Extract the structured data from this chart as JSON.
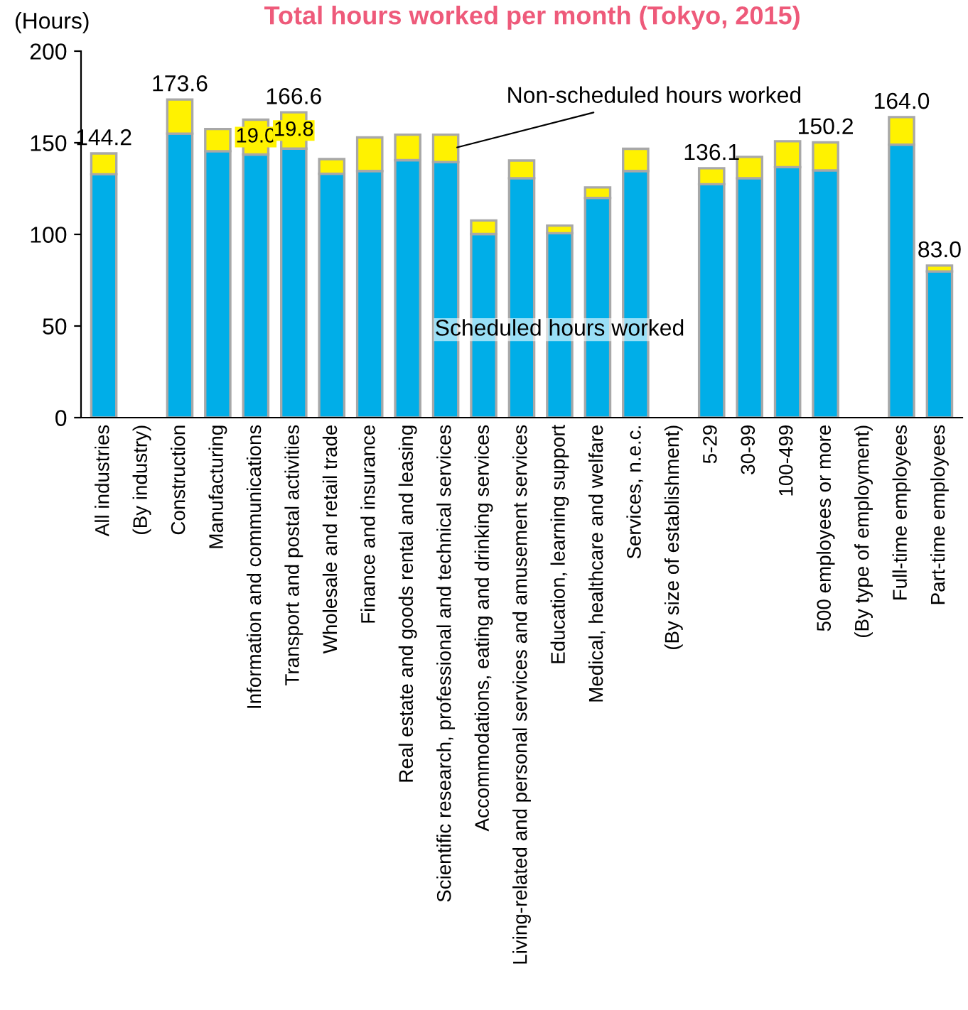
{
  "chart_data": {
    "type": "bar",
    "stacked": true,
    "title": "Total hours worked per month (Tokyo, 2015)",
    "ylabel": "(Hours)",
    "categories": [
      "All industries",
      "(By industry)",
      "Construction",
      "Manufacturing",
      "Information and communications",
      "Transport and postal activities",
      "Wholesale and retail trade",
      "Finance and insurance",
      "Real estate and goods rental and leasing",
      "Scientific research, professional and technical services",
      "Accommodations, eating and drinking services",
      "Living-related and personal services and amusement services",
      "Education, learning support",
      "Medical, healthcare and welfare",
      "Services, n.e.c.",
      "(By size of establishment)",
      "5-29",
      "30-99",
      "100-499",
      "500 employees or more",
      "(By type of employment)",
      "Full-time employees",
      "Part-time employees"
    ],
    "series": [
      {
        "name": "Scheduled hours worked",
        "color": "#00aee8",
        "values": [
          132.8,
          null,
          155.0,
          145.4,
          143.6,
          146.8,
          133.1,
          134.6,
          140.5,
          139.5,
          100.2,
          130.7,
          100.6,
          119.9,
          134.6,
          null,
          127.4,
          130.7,
          136.7,
          134.9,
          null,
          149.0,
          79.8
        ]
      },
      {
        "name": "Non-scheduled hours worked",
        "color": "#fff200",
        "values": [
          11.4,
          null,
          18.6,
          12.1,
          19.0,
          19.8,
          8.0,
          18.3,
          13.9,
          14.9,
          7.4,
          9.6,
          4.2,
          5.7,
          12.1,
          null,
          8.7,
          11.6,
          14.1,
          15.3,
          null,
          15.0,
          3.2
        ],
        "value_labels": [
          null,
          null,
          null,
          null,
          "19.0",
          "19.8",
          null,
          null,
          null,
          null,
          null,
          null,
          null,
          null,
          null,
          null,
          null,
          null,
          null,
          null,
          null,
          null,
          null
        ]
      }
    ],
    "totals": [
      "144.2",
      null,
      "173.6",
      null,
      null,
      "166.6",
      null,
      null,
      null,
      null,
      null,
      null,
      null,
      null,
      null,
      null,
      "136.1",
      null,
      null,
      "150.2",
      null,
      "164.0",
      "83.0"
    ],
    "ylim": [
      0,
      200
    ],
    "yticks": [
      0,
      50,
      100,
      150,
      200
    ],
    "grid": false,
    "legend": false
  }
}
